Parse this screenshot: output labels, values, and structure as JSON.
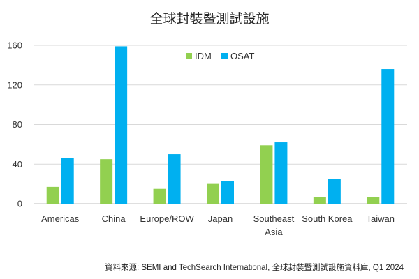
{
  "chart_data": {
    "type": "bar",
    "title": "全球封裝暨測試設施",
    "categories": [
      "Americas",
      "China",
      "Europe/ROW",
      "Japan",
      "Southeast Asia",
      "South Korea",
      "Taiwan"
    ],
    "category_lines": [
      [
        "Americas"
      ],
      [
        "China"
      ],
      [
        "Europe/ROW"
      ],
      [
        "Japan"
      ],
      [
        "Southeast",
        "Asia"
      ],
      [
        "South Korea"
      ],
      [
        "Taiwan"
      ]
    ],
    "series": [
      {
        "name": "IDM",
        "color": "#92d050",
        "values": [
          17,
          45,
          15,
          20,
          59,
          7,
          7
        ]
      },
      {
        "name": "OSAT",
        "color": "#00b0f0",
        "values": [
          46,
          159,
          50,
          23,
          62,
          25,
          136
        ]
      }
    ],
    "ylim": [
      0,
      160
    ],
    "yticks": [
      0,
      40,
      80,
      120,
      160
    ],
    "grid": true,
    "legend_position": "top-center"
  },
  "source_note": "資料來源: SEMI and TechSearch International, 全球封裝暨測試設施資料庫, Q1 2024"
}
